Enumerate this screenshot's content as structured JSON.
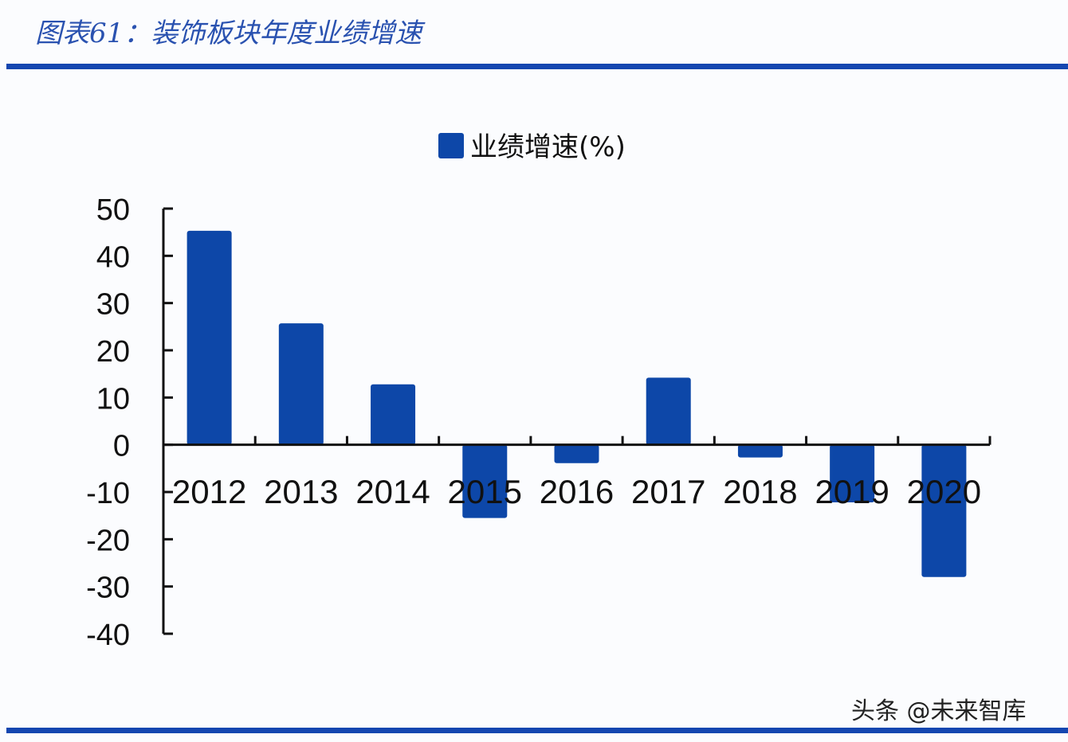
{
  "header": {
    "title": "图表61：装饰板块年度业绩增速"
  },
  "watermark": "头条 @未来智库",
  "colors": {
    "bar": "#0d47a8",
    "rule": "#1446b0",
    "title": "#2a52b0"
  },
  "chart_data": {
    "type": "bar",
    "title": "",
    "legend": {
      "entries": [
        "业绩增速(%)"
      ],
      "placement": "top-center"
    },
    "categories": [
      "2012",
      "2013",
      "2014",
      "2015",
      "2016",
      "2017",
      "2018",
      "2019",
      "2020"
    ],
    "series": [
      {
        "name": "业绩增速(%)",
        "values": [
          45.3,
          25.7,
          12.8,
          -15.5,
          -3.9,
          14.2,
          -2.7,
          -12.2,
          -28.0
        ]
      }
    ],
    "yticks": [
      50,
      40,
      30,
      20,
      10,
      0,
      -10,
      -20,
      -30,
      -40
    ],
    "ylim": [
      -40,
      50
    ],
    "xlabel": "",
    "ylabel": "",
    "grid": false
  }
}
